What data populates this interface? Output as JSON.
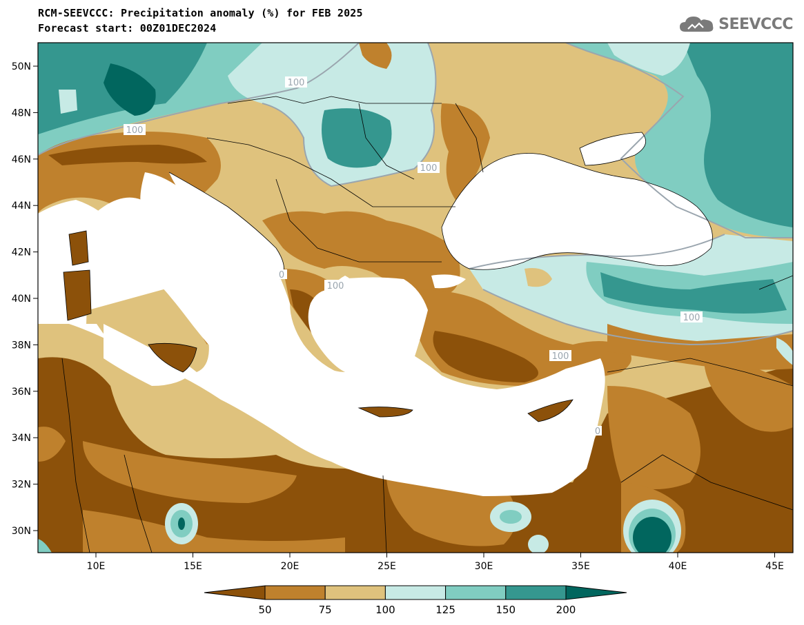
{
  "header": {
    "title_line1": "RCM-SEEVCCC: Precipitation anomaly (%) for FEB 2025",
    "title_line2": "Forecast start: 00Z01DEC2024",
    "logo_text": "SEEVCCC"
  },
  "map": {
    "lat_labels": [
      "50N",
      "48N",
      "46N",
      "44N",
      "42N",
      "40N",
      "38N",
      "36N",
      "34N",
      "32N",
      "30N"
    ],
    "lon_labels": [
      "10E",
      "15E",
      "20E",
      "25E",
      "30E",
      "35E",
      "40E",
      "45E"
    ],
    "contour_labels": [
      "100",
      "100",
      "100",
      "100",
      "100",
      "100",
      "100",
      "100",
      "0",
      "0"
    ]
  },
  "legend": {
    "labels": [
      "50",
      "75",
      "100",
      "125",
      "150",
      "200"
    ],
    "colors": [
      "#8c510a",
      "#bf812d",
      "#dfc27d",
      "#c7eae5",
      "#80cdc1",
      "#35978f",
      "#01665e"
    ]
  }
}
